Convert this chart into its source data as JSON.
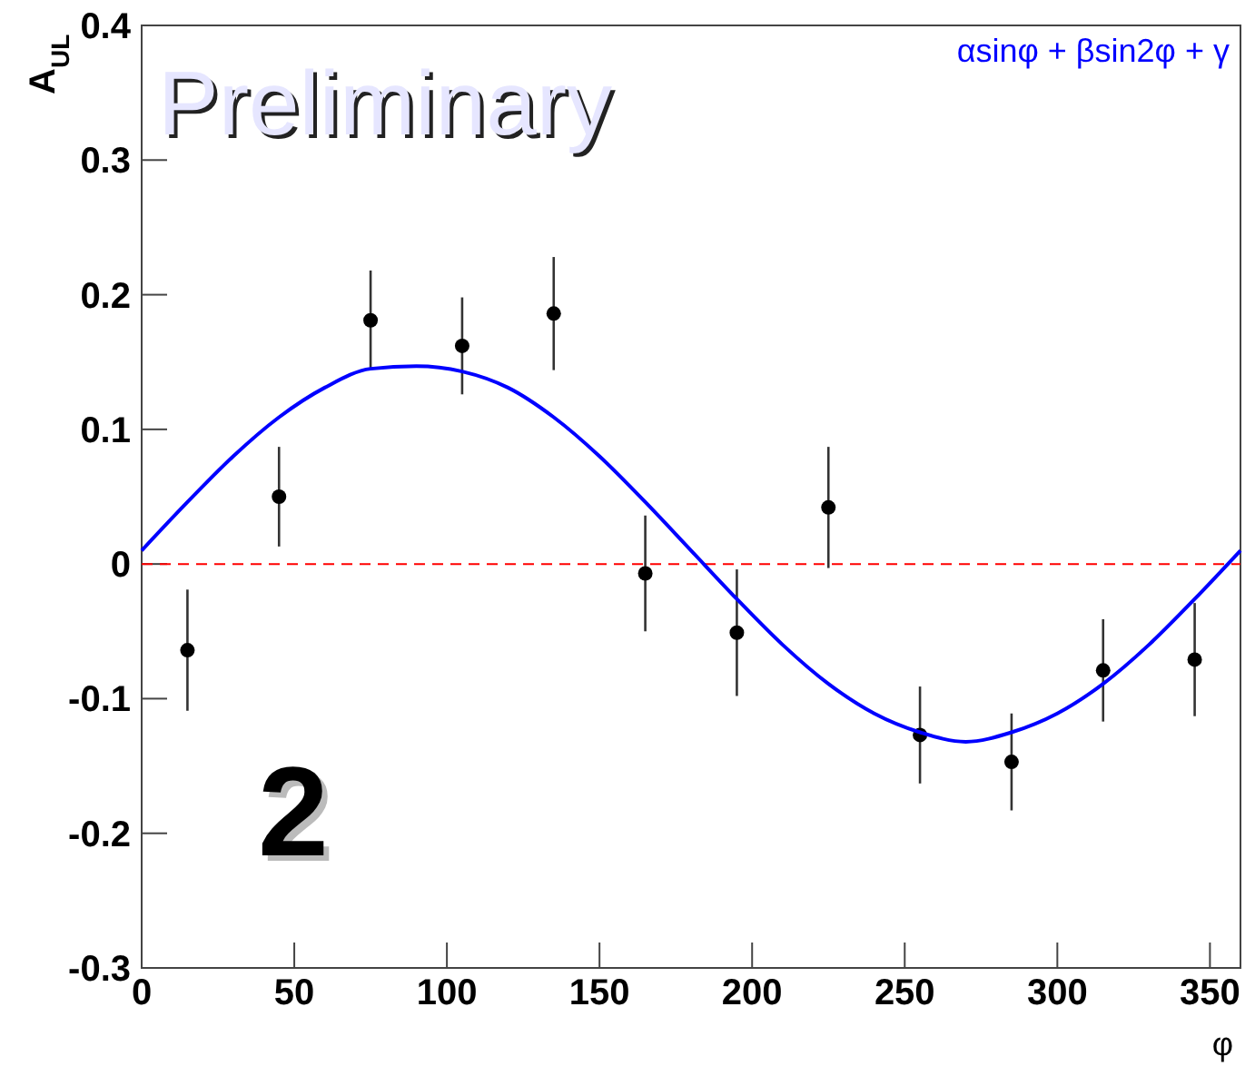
{
  "chart_data": {
    "type": "scatter",
    "xlabel": "φ",
    "ylabel": "A$_{UL}$",
    "xlim": [
      0,
      360
    ],
    "xticks": [
      0,
      50,
      100,
      150,
      200,
      250,
      300,
      350
    ],
    "ylim": [
      -0.3,
      0.4
    ],
    "yticks": [
      -0.3,
      -0.2,
      -0.1,
      0,
      0.1,
      0.2,
      0.3,
      0.4
    ],
    "grid": false,
    "annotations": [
      "Preliminary",
      "2"
    ],
    "ref_lines": [
      {
        "axis": "y",
        "value": 0,
        "color": "#ff0000",
        "line_style": "dashed"
      }
    ],
    "series": [
      {
        "color": "#000000",
        "marker": "circle",
        "x": [
          15,
          45,
          75,
          105,
          135,
          165,
          195,
          225,
          255,
          285,
          315,
          345
        ],
        "values": [
          -0.064,
          0.05,
          0.181,
          0.162,
          0.186,
          -0.007,
          -0.051,
          0.042,
          -0.127,
          -0.147,
          -0.079,
          -0.071
        ],
        "errors": [
          0.045,
          0.037,
          0.037,
          0.036,
          0.042,
          0.043,
          0.047,
          0.045,
          0.036,
          0.036,
          0.038,
          0.042
        ]
      },
      {
        "type": "line",
        "name": "αsinφ + βsin2φ + γ",
        "color": "#0000ff",
        "marker": "none",
        "line_style": "solid",
        "x": [
          0,
          15,
          30,
          45,
          60,
          75,
          90,
          105,
          120,
          135,
          150,
          165,
          180,
          195,
          210,
          225,
          240,
          255,
          270,
          285,
          300,
          315,
          330,
          345,
          360
        ],
        "values": [
          0.01,
          0.046,
          0.08,
          0.109,
          0.131,
          0.145,
          0.147,
          0.143,
          0.131,
          0.109,
          0.08,
          0.046,
          0.01,
          -0.026,
          -0.06,
          -0.089,
          -0.111,
          -0.125,
          -0.132,
          -0.125,
          -0.111,
          -0.089,
          -0.06,
          -0.026,
          0.01
        ]
      }
    ]
  }
}
